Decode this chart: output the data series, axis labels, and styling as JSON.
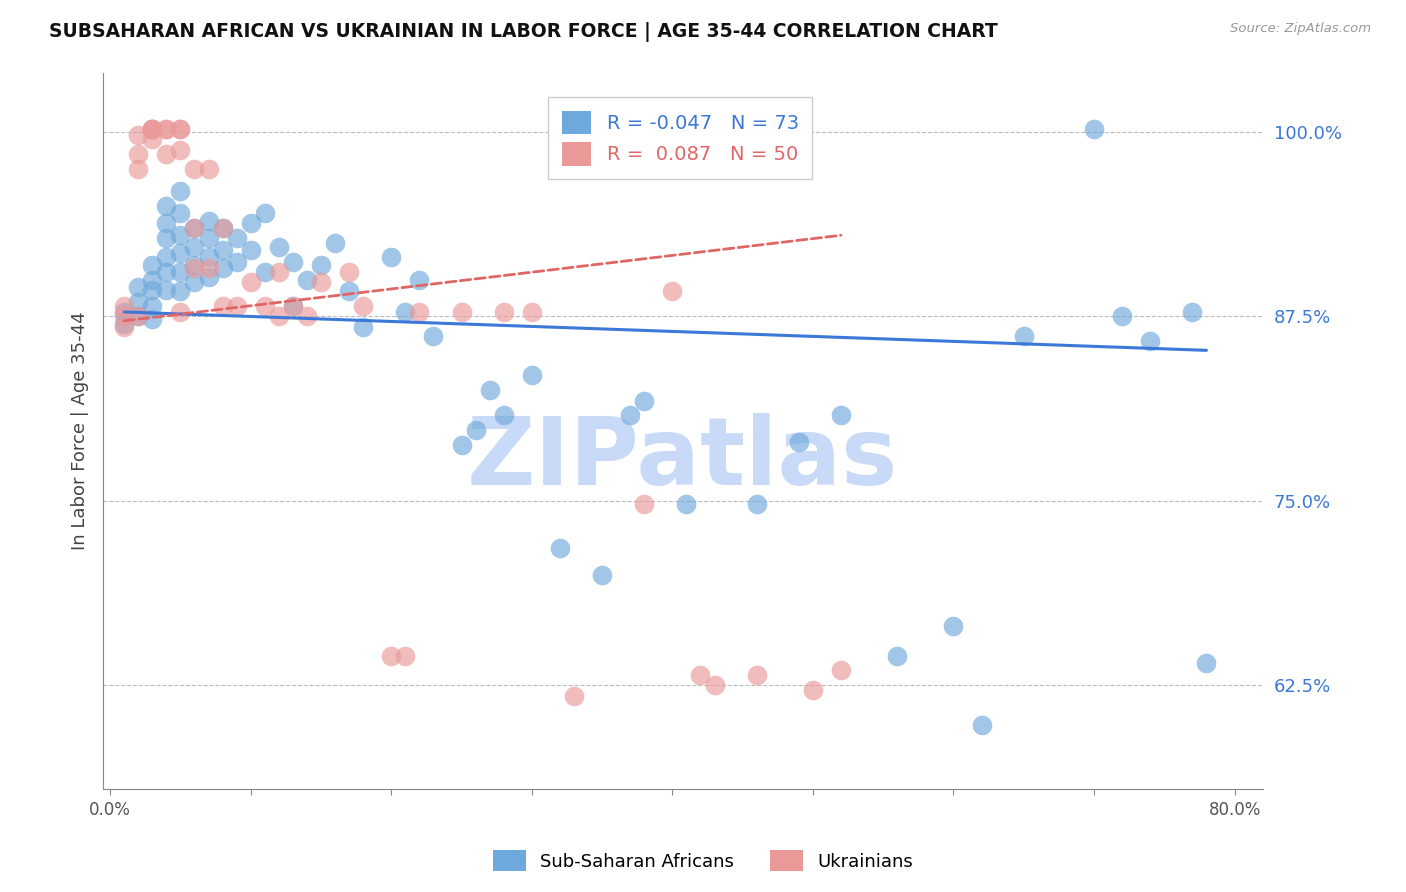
{
  "title": "SUBSAHARAN AFRICAN VS UKRAINIAN IN LABOR FORCE | AGE 35-44 CORRELATION CHART",
  "source": "Source: ZipAtlas.com",
  "ylabel": "In Labor Force | Age 35-44",
  "right_yticks": [
    0.625,
    0.75,
    0.875,
    1.0
  ],
  "right_yticklabels": [
    "62.5%",
    "75.0%",
    "87.5%",
    "100.0%"
  ],
  "xticks": [
    0.0,
    0.1,
    0.2,
    0.3,
    0.4,
    0.5,
    0.6,
    0.7,
    0.8
  ],
  "xticklabels": [
    "0.0%",
    "",
    "",
    "",
    "",
    "",
    "",
    "",
    "80.0%"
  ],
  "xlim": [
    -0.005,
    0.82
  ],
  "ylim": [
    0.555,
    1.04
  ],
  "legend_blue_r": "-0.047",
  "legend_blue_n": "73",
  "legend_pink_r": "0.087",
  "legend_pink_n": "50",
  "blue_color": "#6fa8dc",
  "pink_color": "#ea9999",
  "blue_line_color": "#3c78d8",
  "pink_line_color": "#e06666",
  "watermark": "ZIPatlas",
  "watermark_color": "#c9daf8",
  "blue_scatter_x": [
    0.01,
    0.01,
    0.02,
    0.02,
    0.02,
    0.03,
    0.03,
    0.03,
    0.03,
    0.03,
    0.04,
    0.04,
    0.04,
    0.04,
    0.04,
    0.04,
    0.05,
    0.05,
    0.05,
    0.05,
    0.05,
    0.05,
    0.06,
    0.06,
    0.06,
    0.06,
    0.07,
    0.07,
    0.07,
    0.07,
    0.08,
    0.08,
    0.08,
    0.09,
    0.09,
    0.1,
    0.1,
    0.11,
    0.11,
    0.12,
    0.13,
    0.13,
    0.14,
    0.15,
    0.16,
    0.17,
    0.18,
    0.2,
    0.21,
    0.22,
    0.23,
    0.25,
    0.26,
    0.27,
    0.28,
    0.3,
    0.32,
    0.35,
    0.37,
    0.38,
    0.41,
    0.46,
    0.49,
    0.52,
    0.56,
    0.6,
    0.62,
    0.65,
    0.7,
    0.72,
    0.74,
    0.77,
    0.78
  ],
  "blue_scatter_y": [
    0.878,
    0.87,
    0.895,
    0.885,
    0.875,
    0.91,
    0.9,
    0.893,
    0.882,
    0.873,
    0.95,
    0.938,
    0.928,
    0.915,
    0.905,
    0.893,
    0.96,
    0.945,
    0.93,
    0.918,
    0.905,
    0.892,
    0.935,
    0.922,
    0.91,
    0.898,
    0.94,
    0.928,
    0.915,
    0.902,
    0.935,
    0.92,
    0.908,
    0.928,
    0.912,
    0.938,
    0.92,
    0.945,
    0.905,
    0.922,
    0.912,
    0.882,
    0.9,
    0.91,
    0.925,
    0.892,
    0.868,
    0.915,
    0.878,
    0.9,
    0.862,
    0.788,
    0.798,
    0.825,
    0.808,
    0.835,
    0.718,
    0.7,
    0.808,
    0.818,
    0.748,
    0.748,
    0.79,
    0.808,
    0.645,
    0.665,
    0.598,
    0.862,
    1.002,
    0.875,
    0.858,
    0.878,
    0.64
  ],
  "pink_scatter_x": [
    0.01,
    0.01,
    0.01,
    0.02,
    0.02,
    0.02,
    0.02,
    0.03,
    0.03,
    0.03,
    0.03,
    0.03,
    0.04,
    0.04,
    0.04,
    0.05,
    0.05,
    0.05,
    0.05,
    0.06,
    0.06,
    0.06,
    0.07,
    0.07,
    0.08,
    0.08,
    0.09,
    0.1,
    0.11,
    0.12,
    0.12,
    0.13,
    0.14,
    0.15,
    0.17,
    0.18,
    0.2,
    0.21,
    0.22,
    0.25,
    0.28,
    0.3,
    0.33,
    0.38,
    0.4,
    0.42,
    0.43,
    0.46,
    0.5,
    0.52
  ],
  "pink_scatter_y": [
    0.882,
    0.875,
    0.868,
    0.998,
    0.985,
    0.975,
    0.875,
    1.002,
    1.002,
    1.002,
    1.002,
    0.995,
    1.002,
    1.002,
    0.985,
    1.002,
    1.002,
    0.988,
    0.878,
    0.975,
    0.935,
    0.908,
    0.975,
    0.908,
    0.935,
    0.882,
    0.882,
    0.898,
    0.882,
    0.905,
    0.875,
    0.882,
    0.875,
    0.898,
    0.905,
    0.882,
    0.645,
    0.645,
    0.878,
    0.878,
    0.878,
    0.878,
    0.618,
    0.748,
    0.892,
    0.632,
    0.625,
    0.632,
    0.622,
    0.635
  ],
  "blue_trend_x": [
    0.01,
    0.78
  ],
  "blue_trend_y": [
    0.878,
    0.852
  ],
  "pink_trend_x": [
    0.01,
    0.52
  ],
  "pink_trend_y": [
    0.872,
    0.93
  ]
}
